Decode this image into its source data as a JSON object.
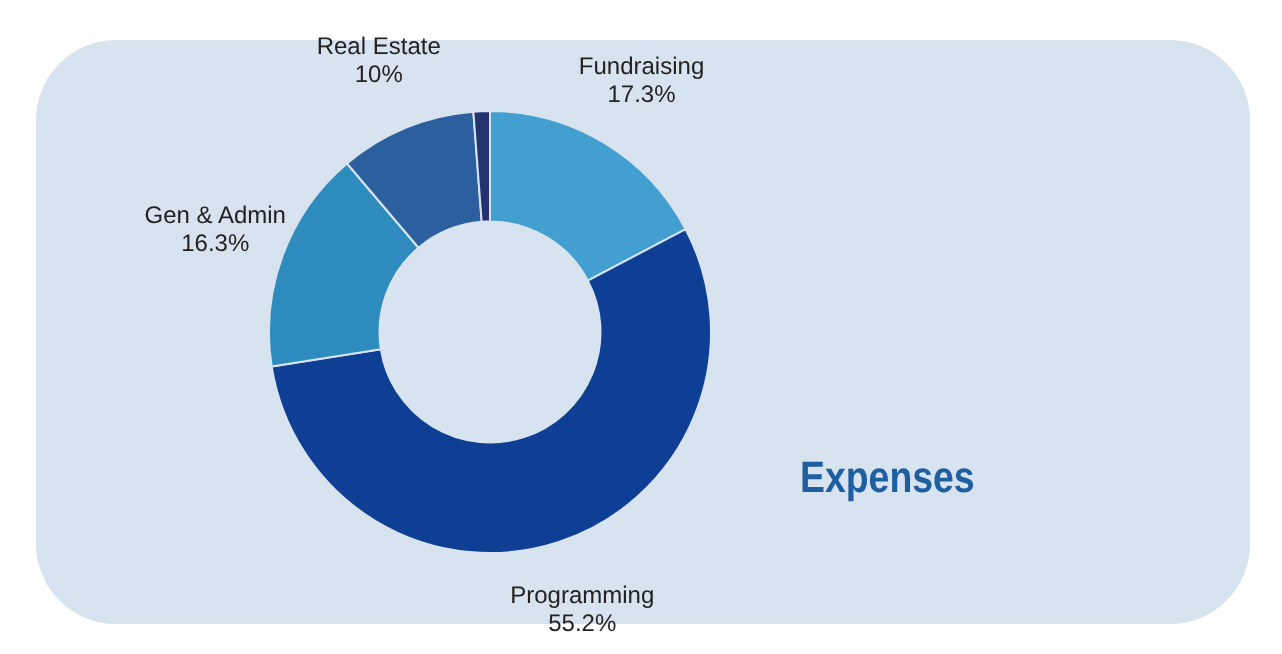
{
  "chart_data": {
    "type": "donut",
    "title": "Expenses",
    "categories": [
      "Fundraising",
      "Programming",
      "Gen & Admin",
      "Real Estate",
      null
    ],
    "values": [
      17.3,
      55.2,
      16.3,
      10,
      1.2
    ],
    "colors": [
      "#429fd0",
      "#0e3f94",
      "#2e8bbd",
      "#2c5f9e",
      "#22336e"
    ],
    "value_labels": [
      "17.3%",
      "55.2%",
      "16.3%",
      "10%",
      null
    ],
    "legend": false
  }
}
